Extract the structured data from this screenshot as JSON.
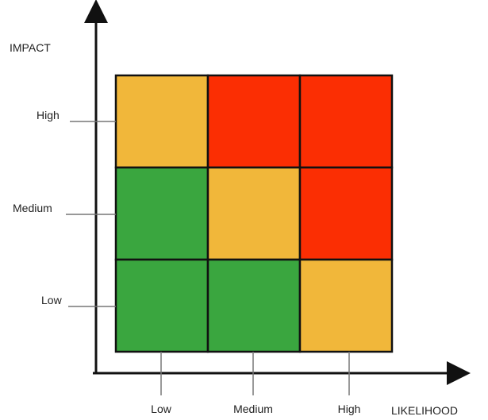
{
  "axes": {
    "y_title": "IMPACT",
    "x_title": "LIKELIHOOD",
    "y_labels": [
      "High",
      "Medium",
      "Low"
    ],
    "x_labels": [
      "Low",
      "Medium",
      "High"
    ]
  },
  "colors": {
    "green": "#3aa63f",
    "amber": "#f1b73a",
    "red": "#fb2e03",
    "grid_line": "#111111",
    "axis": "#111111"
  },
  "matrix": [
    [
      "amber",
      "red",
      "red"
    ],
    [
      "green",
      "amber",
      "red"
    ],
    [
      "green",
      "green",
      "amber"
    ]
  ]
}
